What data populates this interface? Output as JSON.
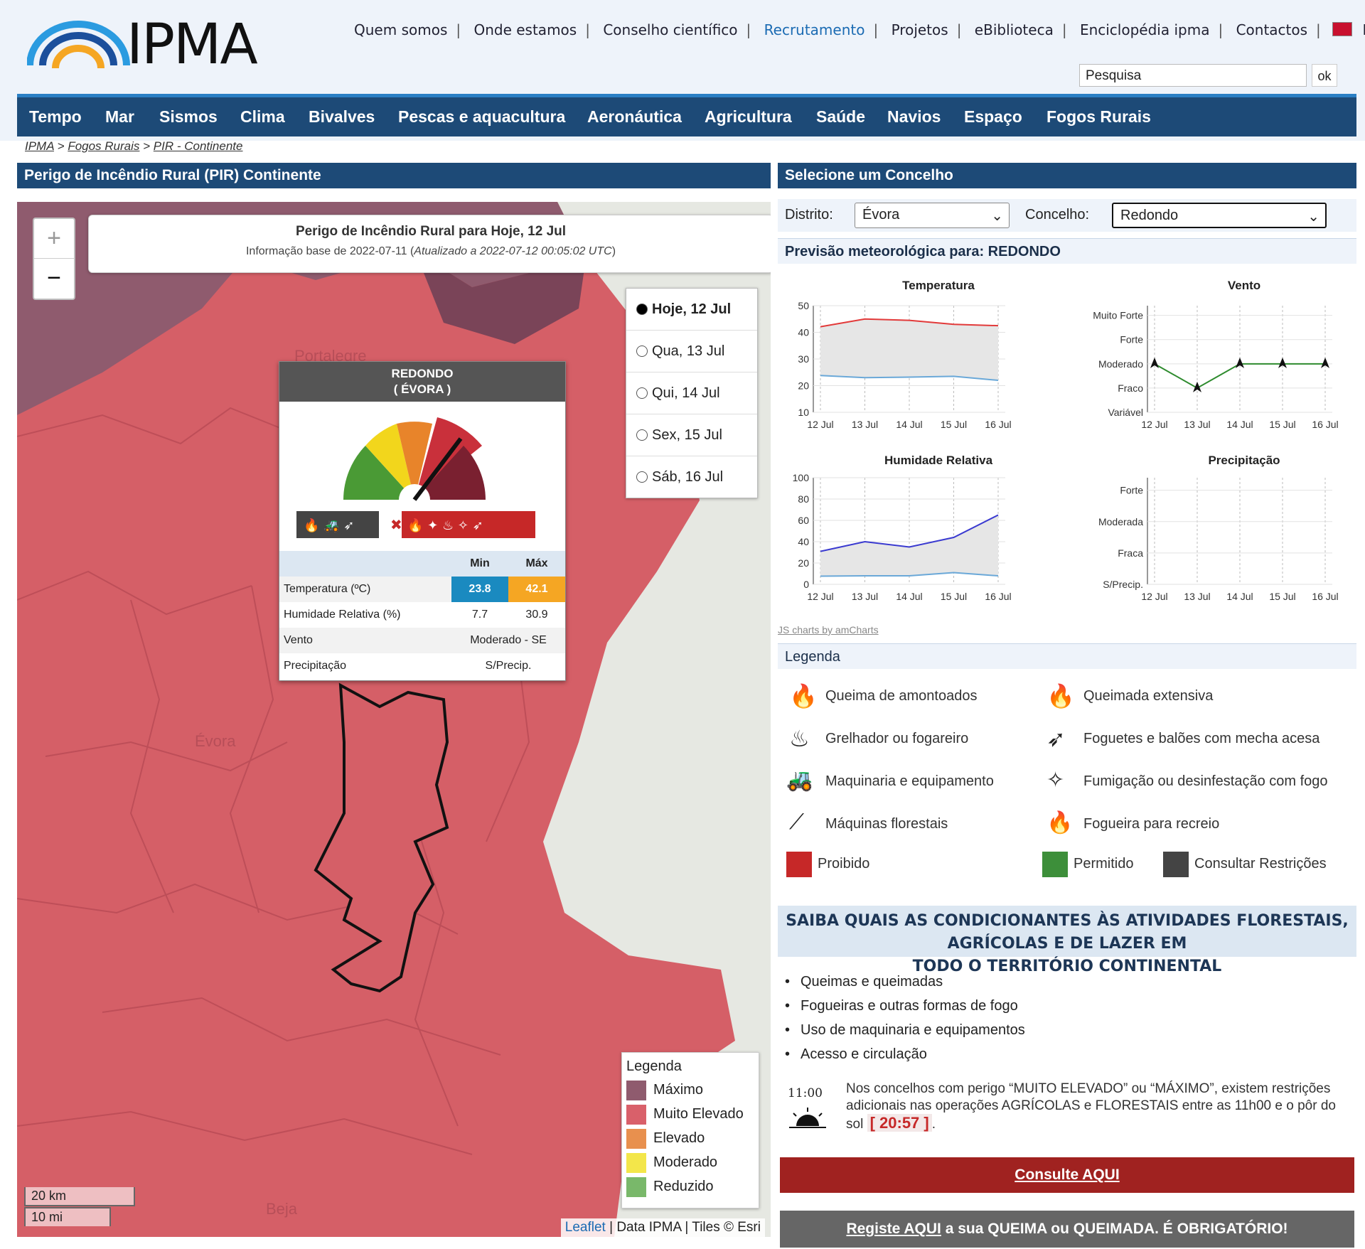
{
  "header": {
    "logo_text": "IPMA",
    "top_links": [
      "Quem somos",
      "Onde estamos",
      "Conselho científico",
      "Recrutamento",
      "Projetos",
      "eBiblioteca",
      "Enciclopédia ipma",
      "Contactos",
      "English"
    ],
    "search_placeholder": "Pesquisa",
    "search_button": "ok"
  },
  "nav": [
    "Tempo",
    "Mar",
    "Sismos",
    "Clima",
    "Bivalves",
    "Pescas e aquacultura",
    "Aeronáutica",
    "Agricultura",
    "Saúde",
    "Navios",
    "Espaço",
    "Fogos Rurais"
  ],
  "breadcrumb": [
    "IPMA",
    "Fogos Rurais",
    "PIR - Continente"
  ],
  "left_panel": {
    "title": "Perigo de Incêndio Rural (PIR) Continente",
    "map_title": "Perigo de Incêndio Rural para Hoje, 12 Jul",
    "map_subtitle_prefix": "Informação base de 2022-07-11 (",
    "map_subtitle_italic": "Atualizado a 2022-07-12 00:05:02 UTC",
    "map_subtitle_suffix": ")",
    "zoom_in": "+",
    "zoom_out": "−",
    "days": [
      {
        "label": "Hoje, 12 Jul",
        "selected": true
      },
      {
        "label": "Qua, 13 Jul",
        "selected": false
      },
      {
        "label": "Qui, 14 Jul",
        "selected": false
      },
      {
        "label": "Sex, 15 Jul",
        "selected": false
      },
      {
        "label": "Sáb, 16 Jul",
        "selected": false
      }
    ],
    "map_labels": [
      "Portalegre",
      "Évora",
      "Beja"
    ],
    "popup": {
      "name": "REDONDO",
      "district": "( ÉVORA )",
      "gauge_level": "Muito Elevado",
      "col_min": "Min",
      "col_max": "Máx",
      "rows": [
        {
          "label": "Temperatura (ºC)",
          "min": "23.8",
          "max": "42.1"
        },
        {
          "label": "Humidade Relativa (%)",
          "min": "7.7",
          "max": "30.9"
        },
        {
          "label": "Vento",
          "value": "Moderado - SE"
        },
        {
          "label": "Precipitação",
          "value": "S/Precip."
        }
      ]
    },
    "map_legend": {
      "title": "Legenda",
      "items": [
        {
          "label": "Máximo",
          "color": "#8f5b6e"
        },
        {
          "label": "Muito Elevado",
          "color": "#d9606a"
        },
        {
          "label": "Elevado",
          "color": "#e8904e"
        },
        {
          "label": "Moderado",
          "color": "#f3e64a"
        },
        {
          "label": "Reduzido",
          "color": "#79b86a"
        }
      ]
    },
    "scale_km": "20 km",
    "scale_mi": "10 mi",
    "attribution": {
      "leaflet": "Leaflet",
      "data": "Data",
      "ipma": "IPMA",
      "tiles": "Tiles © Esri"
    }
  },
  "right_panel": {
    "title": "Selecione um Concelho",
    "distrito_label": "Distrito:",
    "distrito_value": "Évora",
    "concelho_label": "Concelho:",
    "concelho_value": "Redondo",
    "forecast_title": "Previsão meteorológica para: REDONDO",
    "charts_credit": "JS charts by amCharts",
    "legend_title": "Legenda",
    "legend_items": [
      {
        "label": "Queima de amontoados",
        "icon": "pile-burning-icon"
      },
      {
        "label": "Queimada extensiva",
        "icon": "extensive-burning-icon"
      },
      {
        "label": "Grelhador ou fogareiro",
        "icon": "grill-icon"
      },
      {
        "label": "Foguetes e balões com mecha acesa",
        "icon": "rocket-icon"
      },
      {
        "label": "Maquinaria e equipamento",
        "icon": "tractor-icon"
      },
      {
        "label": "Fumigação ou desinfestação com fogo",
        "icon": "fumigation-icon"
      },
      {
        "label": "Máquinas florestais",
        "icon": "chainsaw-icon"
      },
      {
        "label": "Fogueira para recreio",
        "icon": "campfire-icon"
      }
    ],
    "legend_swatches": [
      {
        "label": "Proibido",
        "color": "#c62828"
      },
      {
        "label": "Permitido",
        "color": "#3d8f3a"
      },
      {
        "label": "Consultar Restrições",
        "color": "#444444"
      }
    ],
    "saiba_line1": "SAIBA QUAIS AS CONDICIONANTES ÀS ATIVIDADES FLORESTAIS, AGRÍCOLAS E DE LAZER EM",
    "saiba_line2": "TODO O TERRITÓRIO CONTINENTAL",
    "bullets": [
      "Queimas e queimadas",
      "Fogueiras e outras formas de fogo",
      "Uso de maquinaria e equipamentos",
      "Acesso e circulação"
    ],
    "clock_time": "11:00",
    "note_prefix": "Nos concelhos com perigo “MUITO ELEVADO” ou “MÁXIMO”, existem restrições adicionais nas operações AGRÍCOLAS e FLORESTAIS entre as 11h00 e o pôr do sol",
    "sunset": "[ 20:57 ]",
    "note_suffix": ".",
    "btn_consult": "Consulte AQUI",
    "btn_register_link": "Registe AQUI",
    "btn_register_rest": " a sua QUEIMA ou QUEIMADA. É OBRIGATÓRIO!"
  },
  "chart_data": [
    {
      "type": "area",
      "title": "Temperatura",
      "categories": [
        "12 Jul",
        "13 Jul",
        "14 Jul",
        "15 Jul",
        "16 Jul"
      ],
      "ylim": [
        10,
        50
      ],
      "yticks": [
        10,
        20,
        30,
        40,
        50
      ],
      "series": [
        {
          "values": [
            42.1,
            45,
            44.5,
            43,
            42.5
          ],
          "color": "#e23a3a"
        },
        {
          "values": [
            23.8,
            23,
            23.2,
            23.5,
            22
          ],
          "color": "#6aa8d8"
        }
      ]
    },
    {
      "type": "line",
      "title": "Vento",
      "categories": [
        "12 Jul",
        "13 Jul",
        "14 Jul",
        "15 Jul",
        "16 Jul"
      ],
      "ylabels": [
        "Variável",
        "Fraco",
        "Moderado",
        "Forte",
        "Muito Forte"
      ],
      "series": [
        {
          "values": [
            2,
            1,
            2,
            2,
            2
          ],
          "color": "#2e8b2e"
        }
      ]
    },
    {
      "type": "area",
      "title": "Humidade Relativa",
      "categories": [
        "12 Jul",
        "13 Jul",
        "14 Jul",
        "15 Jul",
        "16 Jul"
      ],
      "ylim": [
        0,
        100
      ],
      "yticks": [
        0,
        20,
        40,
        60,
        80,
        100
      ],
      "series": [
        {
          "values": [
            30.9,
            40,
            35,
            44,
            65
          ],
          "color": "#3a3ad0"
        },
        {
          "values": [
            7.7,
            8,
            8,
            11,
            8
          ],
          "color": "#6aa8d8"
        }
      ]
    },
    {
      "type": "line",
      "title": "Precipitação",
      "categories": [
        "12 Jul",
        "13 Jul",
        "14 Jul",
        "15 Jul",
        "16 Jul"
      ],
      "ylabels": [
        "S/Precip.",
        "Fraca",
        "Moderada",
        "Forte"
      ],
      "series": []
    }
  ]
}
